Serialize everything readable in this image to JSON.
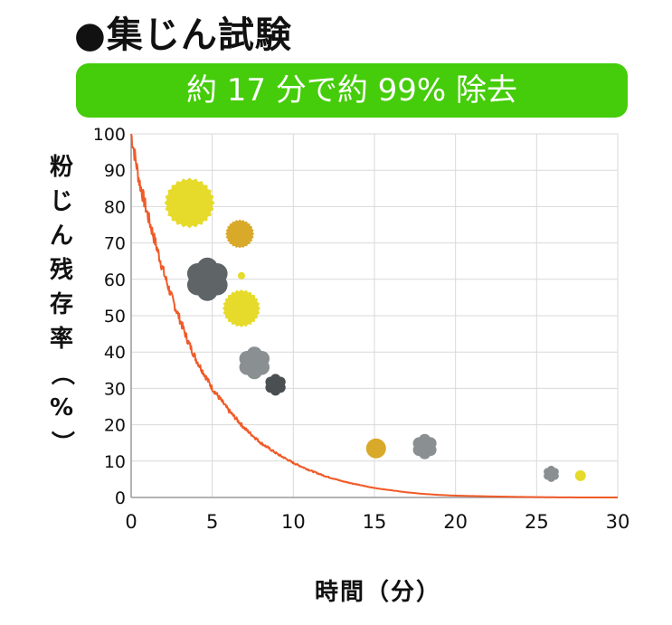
{
  "title": "●集じん試験",
  "banner": "約 17 分で約 99% 除去",
  "chart_data": {
    "type": "line",
    "title": "",
    "xlabel": "時間（分）",
    "ylabel": "粉じん残存率（%）",
    "xlim": [
      0,
      30
    ],
    "ylim": [
      0,
      100
    ],
    "x_ticks": [
      0,
      5,
      10,
      15,
      20,
      25,
      30
    ],
    "y_ticks": [
      0,
      10,
      20,
      30,
      40,
      50,
      60,
      70,
      80,
      90,
      100
    ],
    "grid": true,
    "series": [
      {
        "color": "#f05a28",
        "x": [
          0,
          0.5,
          1,
          1.5,
          2,
          2.5,
          3,
          3.5,
          4,
          4.5,
          5,
          6,
          7,
          8,
          9,
          10,
          11,
          12,
          13,
          14,
          15,
          16,
          17,
          18,
          19,
          20,
          22,
          24,
          26,
          28,
          30
        ],
        "y": [
          100,
          87,
          78,
          70,
          62,
          55,
          49,
          43,
          38,
          34,
          30,
          24,
          19,
          15,
          12,
          9.5,
          7.5,
          5.8,
          4.5,
          3.5,
          2.6,
          2,
          1.4,
          1,
          0.7,
          0.5,
          0.3,
          0.15,
          0.05,
          0,
          0
        ]
      }
    ],
    "particles": [
      {
        "x": 3.6,
        "y": 81,
        "r": 28,
        "shape": "burst",
        "color": "#e6db2a"
      },
      {
        "x": 6.7,
        "y": 72.5,
        "r": 16,
        "shape": "burst",
        "color": "#d9a92a"
      },
      {
        "x": 4.7,
        "y": 60,
        "r": 24,
        "shape": "cloud",
        "color": "#5f6466"
      },
      {
        "x": 6.8,
        "y": 61,
        "r": 4,
        "shape": "circle",
        "color": "#e6db2a"
      },
      {
        "x": 6.8,
        "y": 52,
        "r": 21,
        "shape": "burst",
        "color": "#e6db2a"
      },
      {
        "x": 7.6,
        "y": 37,
        "r": 18,
        "shape": "cloud",
        "color": "#8a9092"
      },
      {
        "x": 8.9,
        "y": 31,
        "r": 12,
        "shape": "cloud",
        "color": "#4a4f52"
      },
      {
        "x": 15.1,
        "y": 13.5,
        "r": 11,
        "shape": "circle",
        "color": "#d9a92a"
      },
      {
        "x": 18.1,
        "y": 14,
        "r": 14,
        "shape": "cloud",
        "color": "#8a9092"
      },
      {
        "x": 25.9,
        "y": 6.5,
        "r": 9,
        "shape": "cloud",
        "color": "#8a9092"
      },
      {
        "x": 27.7,
        "y": 6,
        "r": 6,
        "shape": "circle",
        "color": "#e6db2a"
      }
    ]
  }
}
